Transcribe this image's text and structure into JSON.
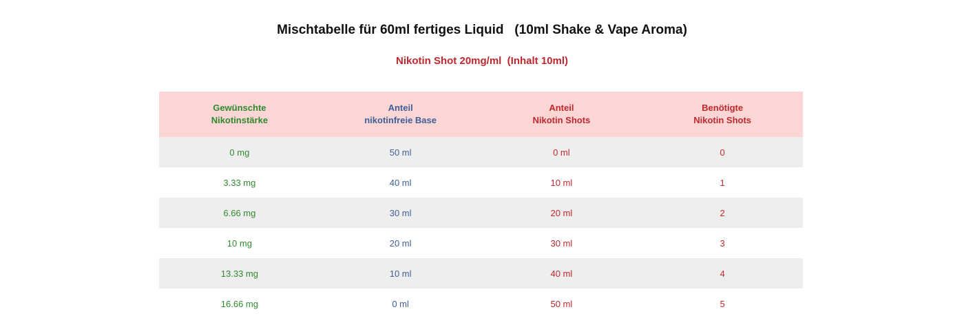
{
  "title": "Mischtabelle für 60ml fertiges Liquid   (10ml Shake & Vape Aroma)",
  "subtitle": "Nikotin Shot 20mg/ml  (Inhalt 10ml)",
  "colors": {
    "col1": "#2f8a2f",
    "col2": "#3f5f99",
    "col3": "#c0272d",
    "col4": "#c0272d",
    "header_bg": "#fcd5d5",
    "stripe": "#eeeeee"
  },
  "table": {
    "headers": [
      [
        "Gewünschte",
        "Nikotinstärke"
      ],
      [
        "Anteil",
        "nikotinfreie Base"
      ],
      [
        "Anteil",
        "Nikotin Shots"
      ],
      [
        "Benötigte",
        "Nikotin Shots"
      ]
    ],
    "rows": [
      [
        "0 mg",
        "50 ml",
        "0 ml",
        "0"
      ],
      [
        "3.33 mg",
        "40 ml",
        "10 ml",
        "1"
      ],
      [
        "6.66 mg",
        "30 ml",
        "20 ml",
        "2"
      ],
      [
        "10 mg",
        "20 ml",
        "30 ml",
        "3"
      ],
      [
        "13.33 mg",
        "10 ml",
        "40 ml",
        "4"
      ],
      [
        "16.66 mg",
        "0 ml",
        "50 ml",
        "5"
      ]
    ]
  }
}
